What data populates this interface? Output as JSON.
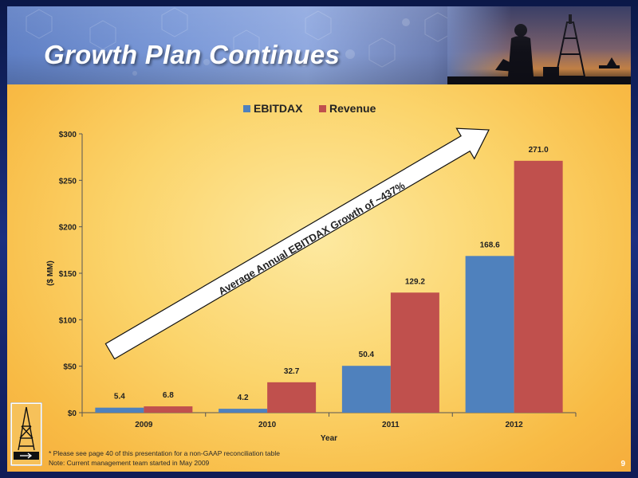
{
  "slide": {
    "title": "Growth Plan Continues",
    "page_number": "9",
    "footnotes": [
      "* Please see page 40 of this presentation for a non-GAAP reconciliation table",
      "Note:  Current management team started in May 2009"
    ]
  },
  "colors": {
    "ebitdax": "#4f81bd",
    "revenue": "#c0504d",
    "background": "#fbd46b"
  },
  "icons": [
    "oil-derrick-logo-icon",
    "oil-pump-photo"
  ],
  "chart_data": {
    "type": "bar",
    "categories": [
      "2009",
      "2010",
      "2011",
      "2012"
    ],
    "series": [
      {
        "name": "EBITDAX",
        "values": [
          5.4,
          4.2,
          50.4,
          168.6
        ],
        "labels": [
          "5.4",
          "4.2",
          "50.4",
          "168.6"
        ]
      },
      {
        "name": "Revenue",
        "values": [
          6.8,
          32.7,
          129.2,
          271.0
        ],
        "labels": [
          "6.8",
          "32.7",
          "129.2",
          "271.0"
        ]
      }
    ],
    "xlabel": "Year",
    "ylabel": "($ MM)",
    "ylim": [
      0,
      300
    ],
    "yticks": [
      0,
      50,
      100,
      150,
      200,
      250,
      300
    ],
    "ytick_labels": [
      "$0",
      "$50",
      "$100",
      "$150",
      "$200",
      "$250",
      "$300"
    ],
    "legend_position": "top",
    "grid": false,
    "annotation": "Average Annual EBITDAX Growth of ~437%"
  }
}
